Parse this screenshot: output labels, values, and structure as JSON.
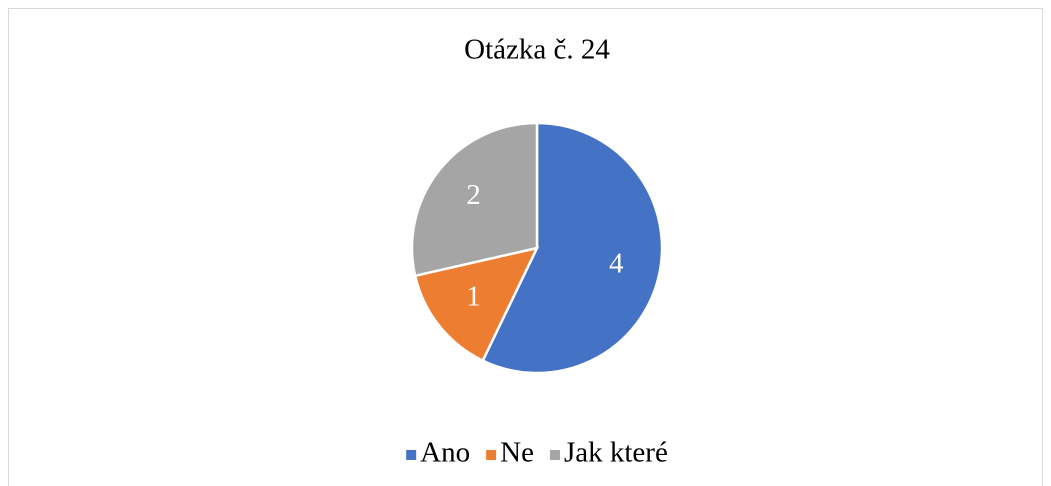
{
  "chart_data": {
    "type": "pie",
    "title": "Otázka č. 24",
    "categories": [
      "Ano",
      "Ne",
      "Jak které"
    ],
    "values": [
      4,
      1,
      2
    ],
    "colors": [
      "#4472c4",
      "#ed7d31",
      "#a5a5a5"
    ],
    "legend": "bottom"
  }
}
